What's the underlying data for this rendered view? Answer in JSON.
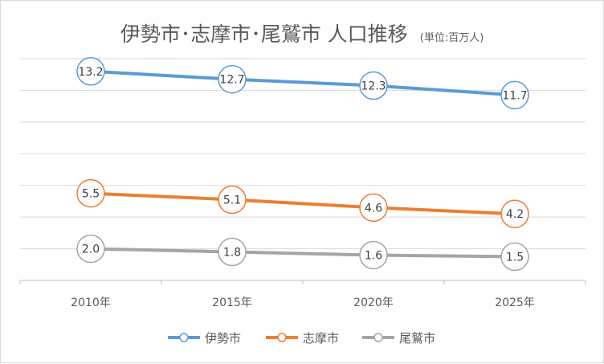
{
  "chart_data": {
    "type": "line",
    "title": "伊勢市･志摩市･尾鷲市 人口推移",
    "unit": "(単位:百万人)",
    "categories": [
      "2010年",
      "2015年",
      "2020年",
      "2025年"
    ],
    "series": [
      {
        "name": "伊勢市",
        "values": [
          13.2,
          12.7,
          12.3,
          11.7
        ],
        "color": "#5b9bd5"
      },
      {
        "name": "志摩市",
        "values": [
          5.5,
          5.1,
          4.6,
          4.2
        ],
        "color": "#ed7d31"
      },
      {
        "name": "尾鷲市",
        "values": [
          2.0,
          1.8,
          1.6,
          1.5
        ],
        "color": "#a5a5a5"
      }
    ],
    "ylim": [
      0,
      14
    ],
    "y_gridline_step": 2,
    "y_tick_labels_visible": false,
    "grid": true,
    "legend_position": "bottom"
  }
}
